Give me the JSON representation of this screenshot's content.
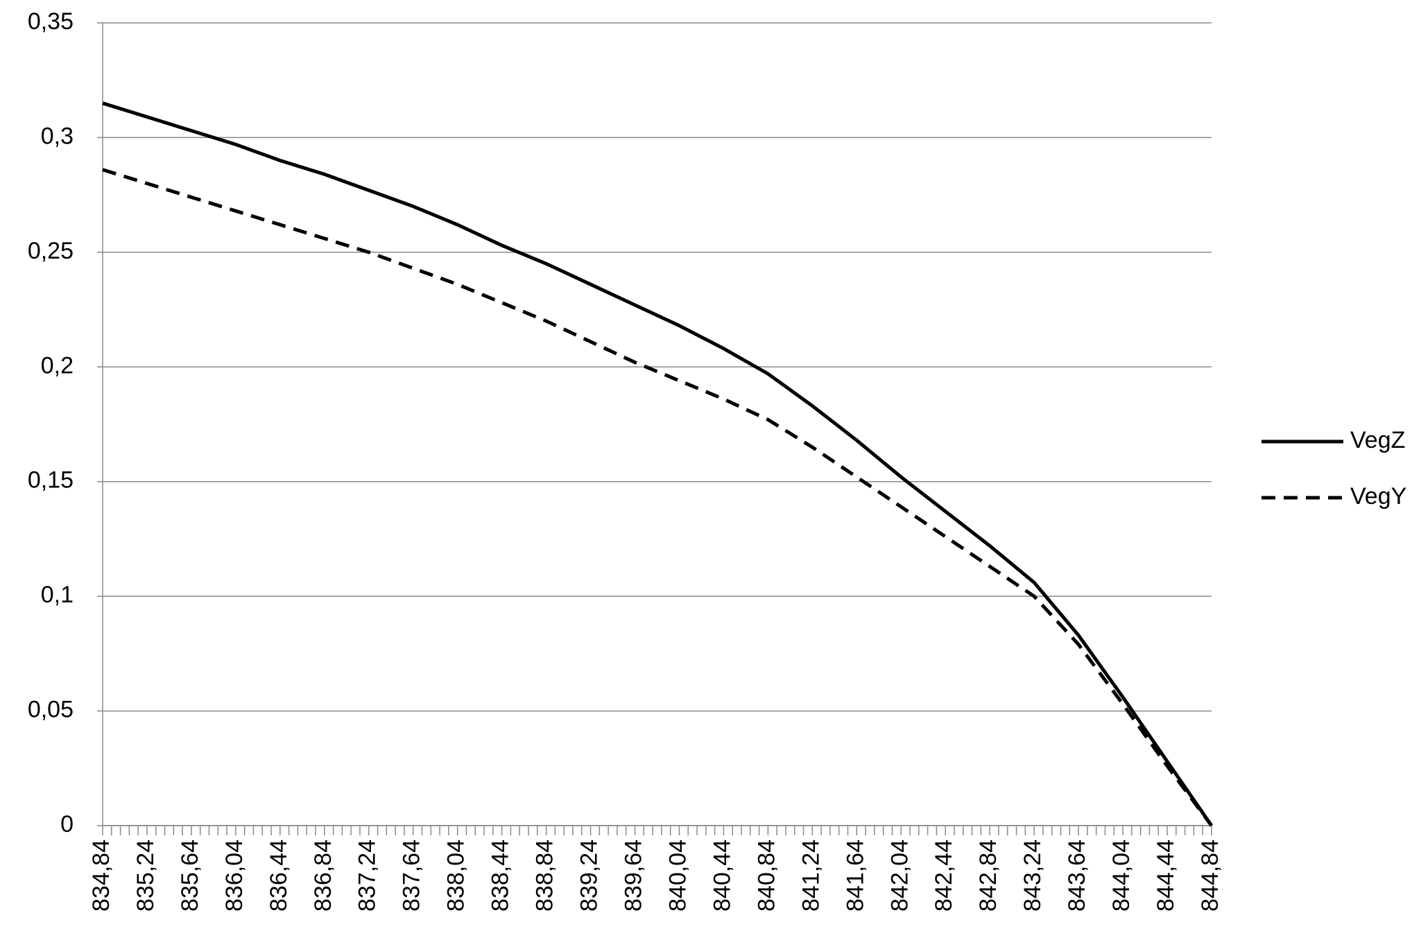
{
  "chart_data": {
    "type": "line",
    "x": [
      834.84,
      835.24,
      835.64,
      836.04,
      836.44,
      836.84,
      837.24,
      837.64,
      838.04,
      838.44,
      838.84,
      839.24,
      839.64,
      840.04,
      840.44,
      840.84,
      841.24,
      841.64,
      842.04,
      842.44,
      842.84,
      843.24,
      843.64,
      844.04,
      844.44,
      844.84
    ],
    "series": [
      {
        "name": "VegZ",
        "color": "#000000",
        "dash": false,
        "values": [
          0.315,
          0.309,
          0.303,
          0.297,
          0.29,
          0.284,
          0.277,
          0.27,
          0.262,
          0.253,
          0.245,
          0.236,
          0.227,
          0.218,
          0.208,
          0.197,
          0.183,
          0.168,
          0.152,
          0.137,
          0.122,
          0.106,
          0.083,
          0.056,
          0.028,
          0
        ]
      },
      {
        "name": "VegY",
        "color": "#000000",
        "dash": true,
        "values": [
          0.286,
          0.28,
          0.274,
          0.268,
          0.262,
          0.256,
          0.25,
          0.243,
          0.236,
          0.228,
          0.22,
          0.211,
          0.202,
          0.194,
          0.186,
          0.177,
          0.165,
          0.152,
          0.139,
          0.126,
          0.113,
          0.1,
          0.079,
          0.053,
          0.026,
          0
        ]
      }
    ],
    "xlim": [
      834.84,
      844.84
    ],
    "xticks": [
      {
        "value": 834.84,
        "label": "834,84"
      },
      {
        "value": 835.24,
        "label": "835,24"
      },
      {
        "value": 835.64,
        "label": "835,64"
      },
      {
        "value": 836.04,
        "label": "836,04"
      },
      {
        "value": 836.44,
        "label": "836,44"
      },
      {
        "value": 836.84,
        "label": "836,84"
      },
      {
        "value": 837.24,
        "label": "837,24"
      },
      {
        "value": 837.64,
        "label": "837,64"
      },
      {
        "value": 838.04,
        "label": "838,04"
      },
      {
        "value": 838.44,
        "label": "838,44"
      },
      {
        "value": 838.84,
        "label": "838,84"
      },
      {
        "value": 839.24,
        "label": "839,24"
      },
      {
        "value": 839.64,
        "label": "839,64"
      },
      {
        "value": 840.04,
        "label": "840,04"
      },
      {
        "value": 840.44,
        "label": "840,44"
      },
      {
        "value": 840.84,
        "label": "840,84"
      },
      {
        "value": 841.24,
        "label": "841,24"
      },
      {
        "value": 841.64,
        "label": "841,64"
      },
      {
        "value": 842.04,
        "label": "842,04"
      },
      {
        "value": 842.44,
        "label": "842,44"
      },
      {
        "value": 842.84,
        "label": "842,84"
      },
      {
        "value": 843.24,
        "label": "843,24"
      },
      {
        "value": 843.64,
        "label": "843,64"
      },
      {
        "value": 844.04,
        "label": "844,04"
      },
      {
        "value": 844.44,
        "label": "844,44"
      },
      {
        "value": 844.84,
        "label": "844,84"
      }
    ],
    "ylim": [
      0,
      0.35
    ],
    "yticks": [
      0,
      {
        "value": 0.05,
        "label": "0,05"
      },
      {
        "value": 0.1,
        "label": "0,1"
      },
      {
        "value": 0.15,
        "label": "0,15"
      },
      {
        "value": 0.2,
        "label": "0,2"
      },
      {
        "value": 0.25,
        "label": "0,25"
      },
      {
        "value": 0.3,
        "label": "0,3"
      },
      {
        "value": 0.35,
        "label": "0,35"
      }
    ],
    "grid": true,
    "legend": "right"
  }
}
